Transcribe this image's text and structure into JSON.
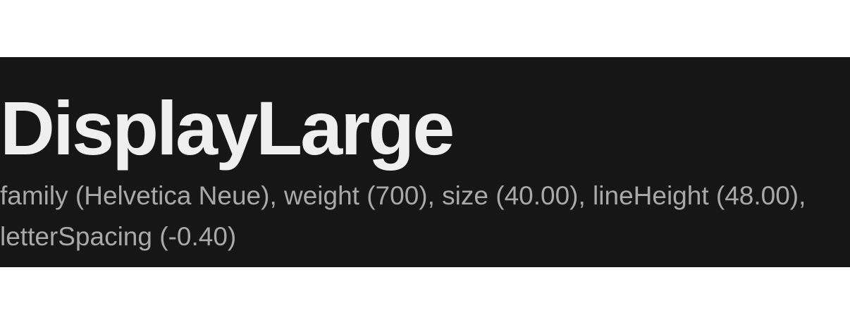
{
  "style": {
    "name": "DisplayLarge",
    "description": "family (Helvetica Neue), weight (700), size (40.00), lineHeight (48.00), letterSpacing (-0.40)"
  },
  "colors": {
    "panel_background": "#161616",
    "title_text": "#efefef",
    "description_text": "#a9a9a9",
    "page_background": "#ffffff"
  }
}
